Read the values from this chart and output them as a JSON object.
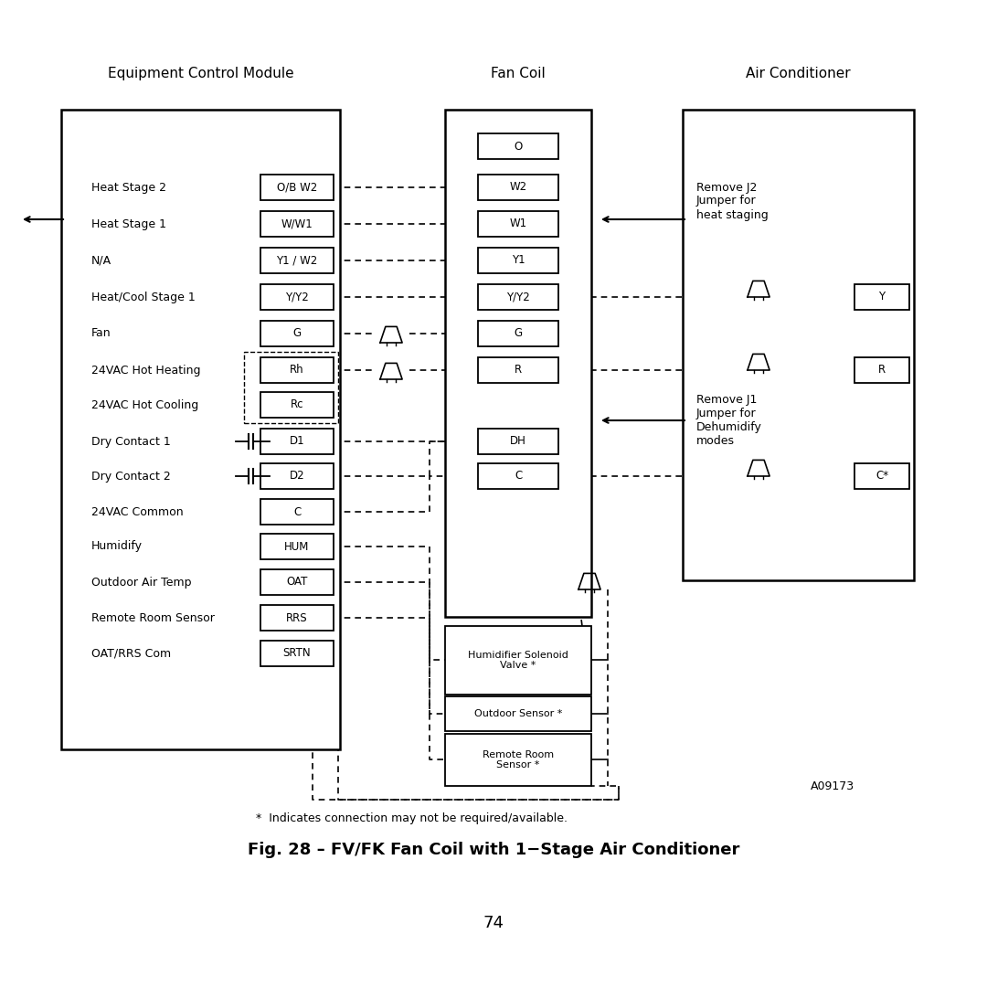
{
  "title": "Fig. 28 – FV/FK Fan Coil with 1−Stage Air Conditioner",
  "page_number": "74",
  "figure_code": "A09173",
  "footnote": "*  Indicates connection may not be required/available.",
  "header_ecm": "Equipment Control Module",
  "header_fc": "Fan Coil",
  "header_ac": "Air Conditioner",
  "ecm_labels": [
    "Heat Stage 2",
    "Heat Stage 1",
    "N/A",
    "Heat/Cool Stage 1",
    "Fan",
    "24VAC Hot Heating",
    "24VAC Hot Cooling",
    "Dry Contact 1",
    "Dry Contact 2",
    "24VAC Common",
    "Humidify",
    "Outdoor Air Temp",
    "Remote Room Sensor",
    "OAT/RRS Com"
  ],
  "ecm_terminals": [
    "O/B W2",
    "W/W1",
    "Y1 / W2",
    "Y/Y2",
    "G",
    "Rh",
    "Rc",
    "D1",
    "D2",
    "C",
    "HUM",
    "OAT",
    "RRS",
    "SRTN"
  ],
  "fc_terminals_main": [
    "O",
    "W2",
    "W1",
    "Y1",
    "Y/Y2",
    "G",
    "R",
    "DH",
    "C"
  ],
  "fc_terminals_lower": [
    "Humidifier Solenoid\nValve *",
    "Outdoor Sensor *",
    "Remote Room\nSensor *"
  ],
  "ac_terminals": [
    "Y",
    "R",
    "C*"
  ],
  "ac_note1": "Remove J2\nJumper for\nheat staging",
  "ac_note2": "Remove J1\nJumper for\nDehumidify\nmodes"
}
